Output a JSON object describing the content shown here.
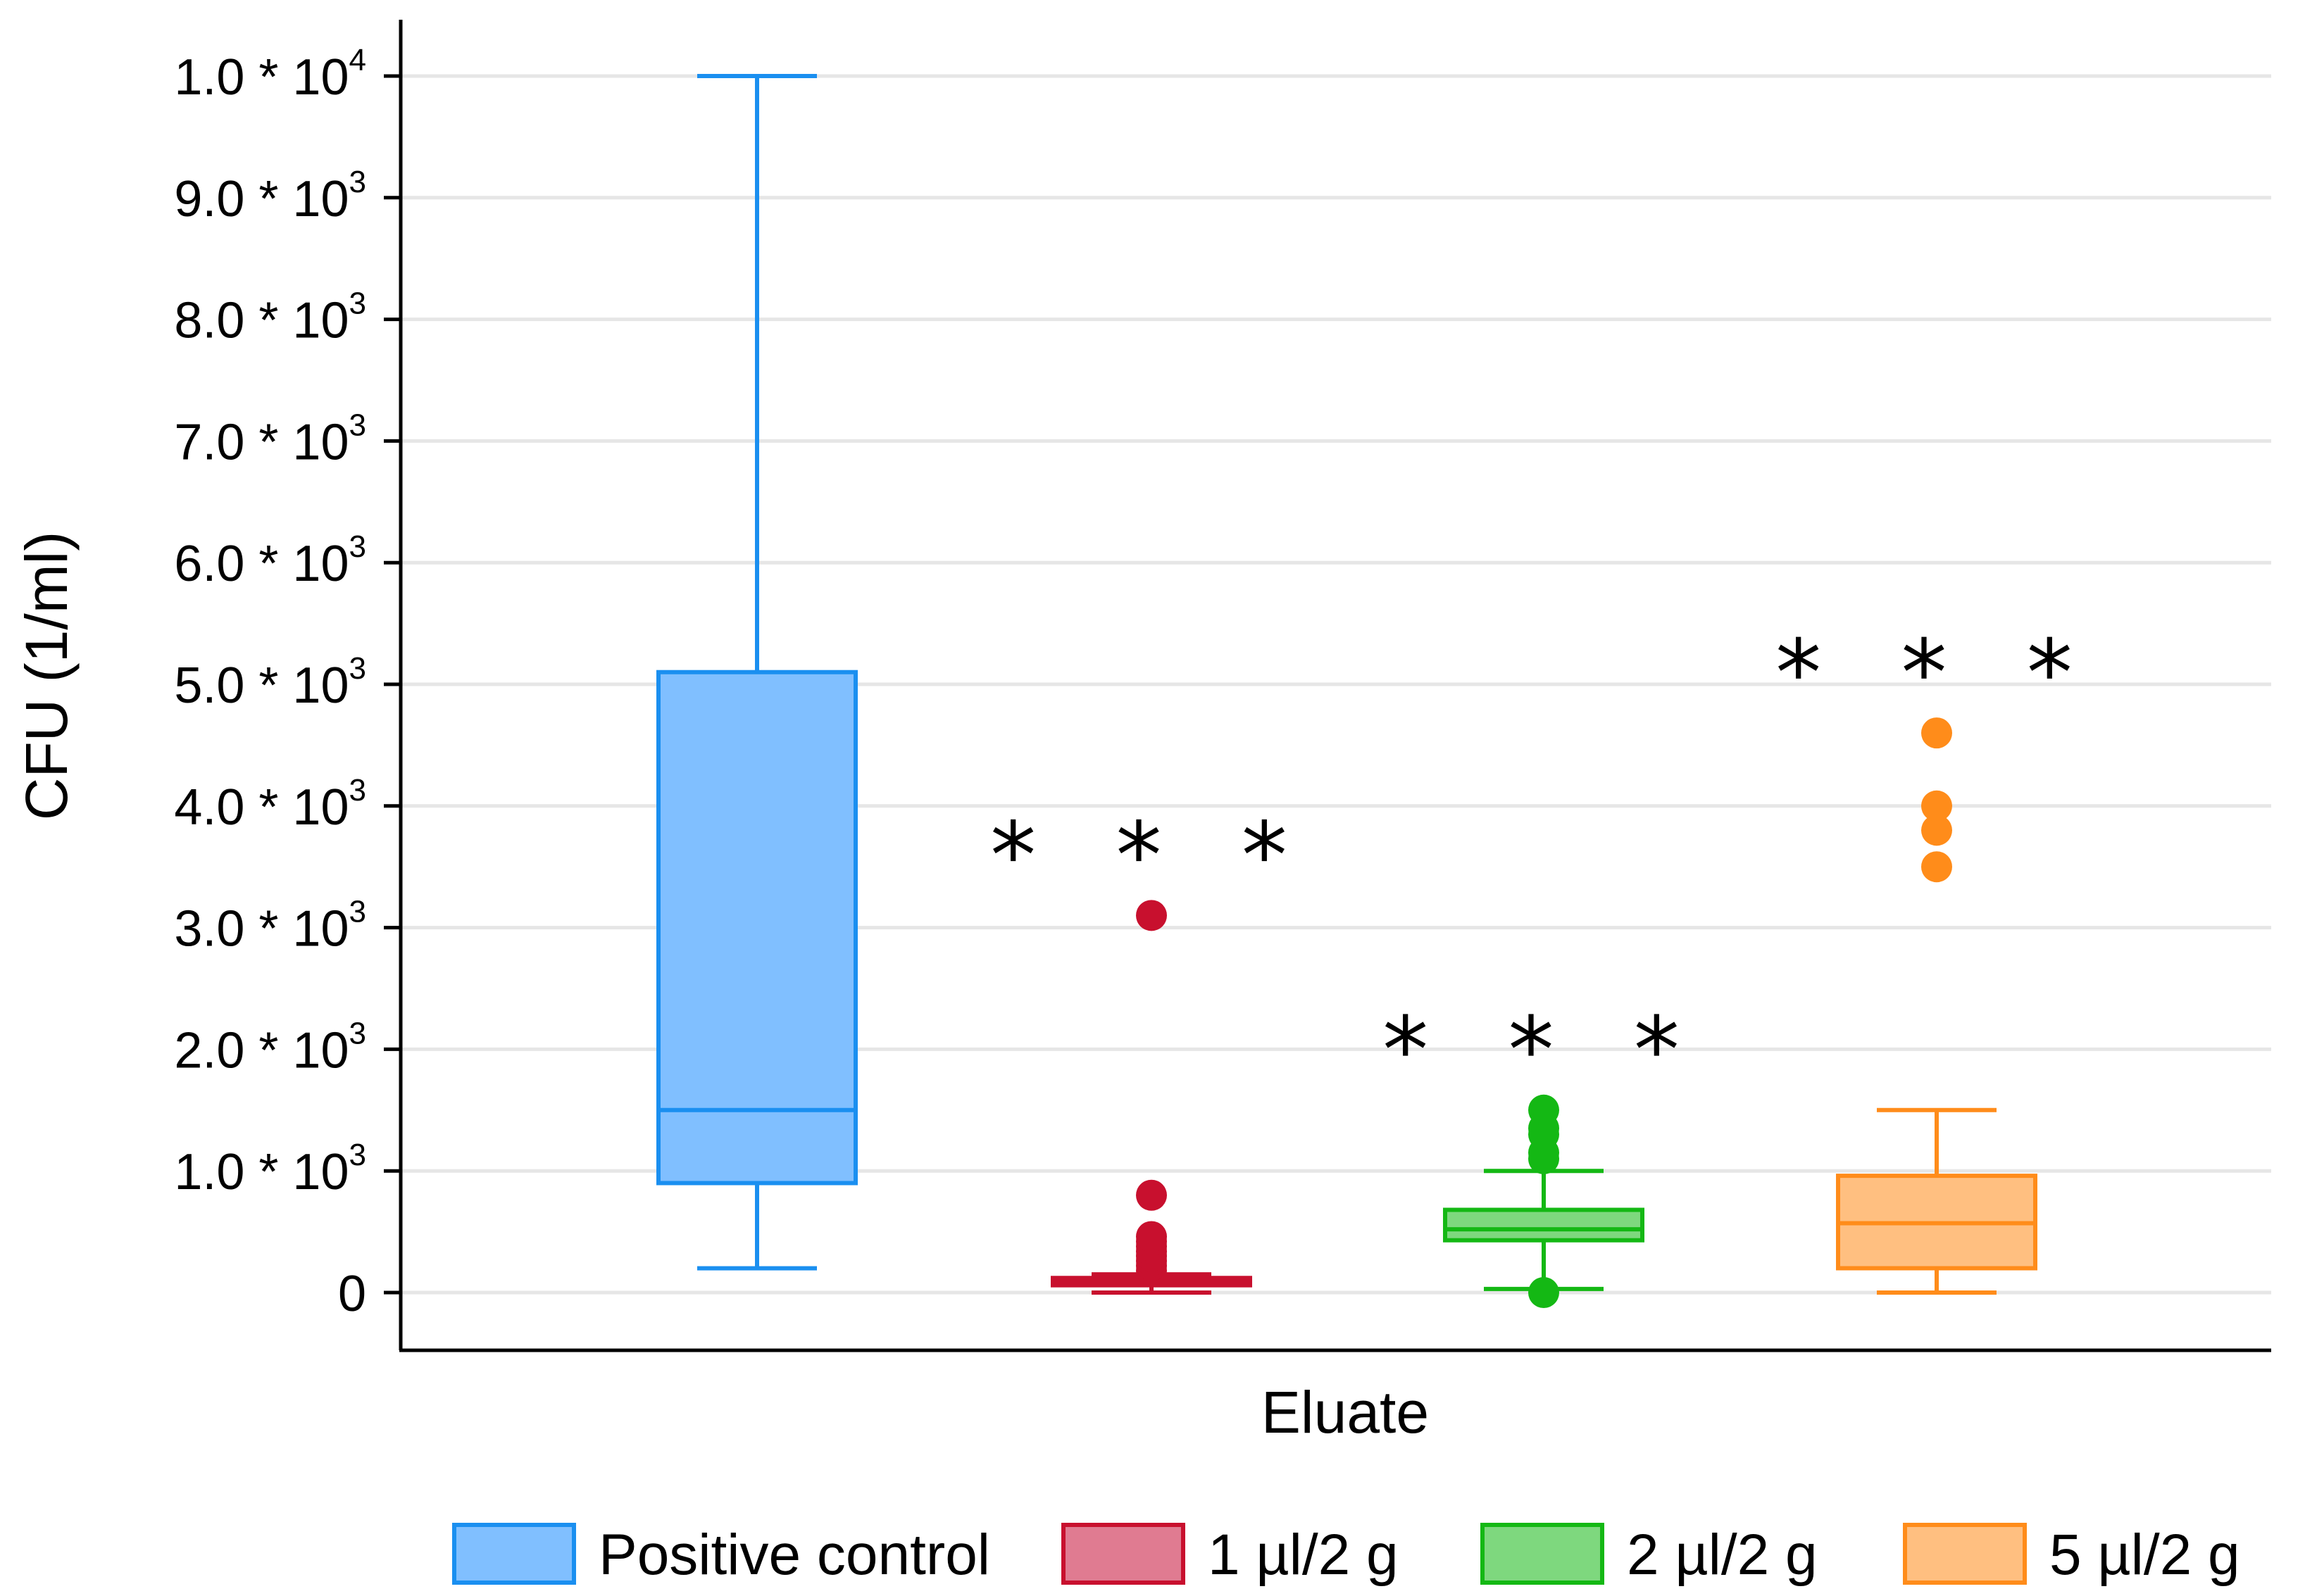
{
  "chart_data": {
    "type": "box",
    "xlabel": "Eluate",
    "ylabel": "CFU (1/ml)",
    "ylim": [
      0,
      10000
    ],
    "grid": true,
    "yticks": [
      {
        "value": 0,
        "mantissa": "0",
        "times": "",
        "base": "",
        "exp": ""
      },
      {
        "value": 1000,
        "mantissa": "1.0",
        "times": "*",
        "base": "10",
        "exp": "3"
      },
      {
        "value": 2000,
        "mantissa": "2.0",
        "times": "*",
        "base": "10",
        "exp": "3"
      },
      {
        "value": 3000,
        "mantissa": "3.0",
        "times": "*",
        "base": "10",
        "exp": "3"
      },
      {
        "value": 4000,
        "mantissa": "4.0",
        "times": "*",
        "base": "10",
        "exp": "3"
      },
      {
        "value": 5000,
        "mantissa": "5.0",
        "times": "*",
        "base": "10",
        "exp": "3"
      },
      {
        "value": 6000,
        "mantissa": "6.0",
        "times": "*",
        "base": "10",
        "exp": "3"
      },
      {
        "value": 7000,
        "mantissa": "7.0",
        "times": "*",
        "base": "10",
        "exp": "3"
      },
      {
        "value": 8000,
        "mantissa": "8.0",
        "times": "*",
        "base": "10",
        "exp": "3"
      },
      {
        "value": 9000,
        "mantissa": "9.0",
        "times": "*",
        "base": "10",
        "exp": "3"
      },
      {
        "value": 10000,
        "mantissa": "1.0",
        "times": "*",
        "base": "10",
        "exp": "4"
      }
    ],
    "series": [
      {
        "name": "Positive control",
        "whisker_low": 200,
        "q1": 900,
        "median": 1500,
        "q3": 5100,
        "whisker_high": 10000,
        "outliers": [],
        "significance": "",
        "stroke": "#1a8ff0",
        "fill": "#80bfff"
      },
      {
        "name": "1 µl/2 g",
        "whisker_low": 0,
        "q1": 60,
        "median": 90,
        "q3": 120,
        "whisker_high": 150,
        "outliers": [
          180,
          220,
          260,
          300,
          340,
          380,
          420,
          460,
          800,
          3100
        ],
        "significance": "* * *",
        "stroke": "#c8102e",
        "fill": "#e07b91"
      },
      {
        "name": "2 µl/2 g",
        "whisker_low": 30,
        "q1": 430,
        "median": 520,
        "q3": 680,
        "whisker_high": 1000,
        "outliers": [
          0,
          1100,
          1150,
          1300,
          1350,
          1500
        ],
        "significance": "* * *",
        "stroke": "#14b814",
        "fill": "#7ed87e"
      },
      {
        "name": "5 µl/2 g",
        "whisker_low": 0,
        "q1": 200,
        "median": 570,
        "q3": 960,
        "whisker_high": 1500,
        "outliers": [
          3500,
          3800,
          4000,
          4600
        ],
        "significance": "* * *",
        "stroke": "#ff8c1a",
        "fill": "#ffbf80"
      }
    ]
  }
}
